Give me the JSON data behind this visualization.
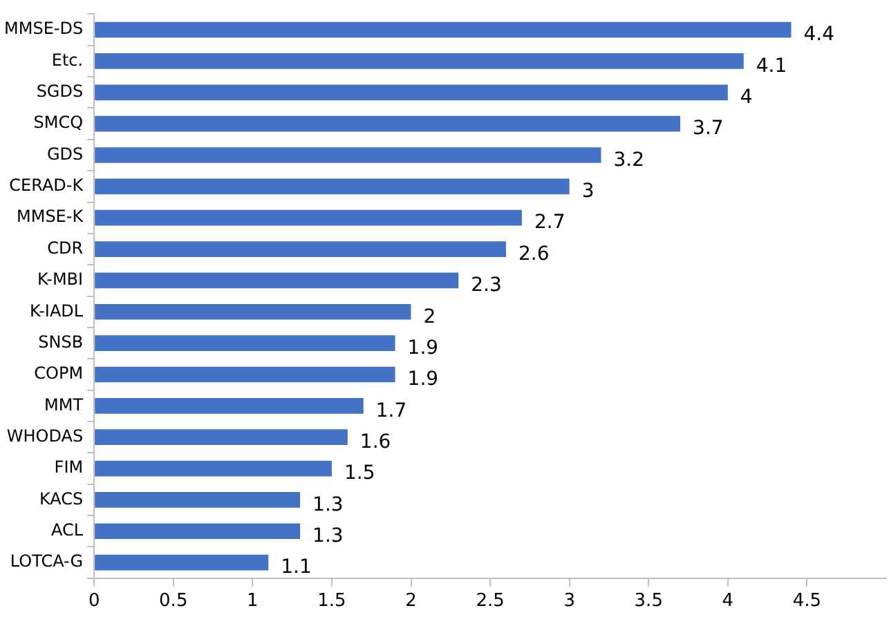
{
  "chart_data": {
    "type": "bar",
    "orientation": "horizontal",
    "categories": [
      "MMSE-DS",
      "Etc.",
      "SGDS",
      "SMCQ",
      "GDS",
      "CERAD-K",
      "MMSE-K",
      "CDR",
      "K-MBI",
      "K-IADL",
      "SNSB",
      "COPM",
      "MMT",
      "WHODAS",
      "FIM",
      "KACS",
      "ACL",
      "LOTCA-G"
    ],
    "values": [
      4.4,
      4.1,
      4,
      3.7,
      3.2,
      3,
      2.7,
      2.6,
      2.3,
      2,
      1.9,
      1.9,
      1.7,
      1.6,
      1.5,
      1.3,
      1.3,
      1.1
    ],
    "color": "#4472c4",
    "xlim": [
      0,
      5
    ],
    "xticks": [
      0,
      0.5,
      1,
      1.5,
      2,
      2.5,
      3,
      3.5,
      4,
      4.5
    ],
    "grid": false,
    "data_labels": true
  }
}
